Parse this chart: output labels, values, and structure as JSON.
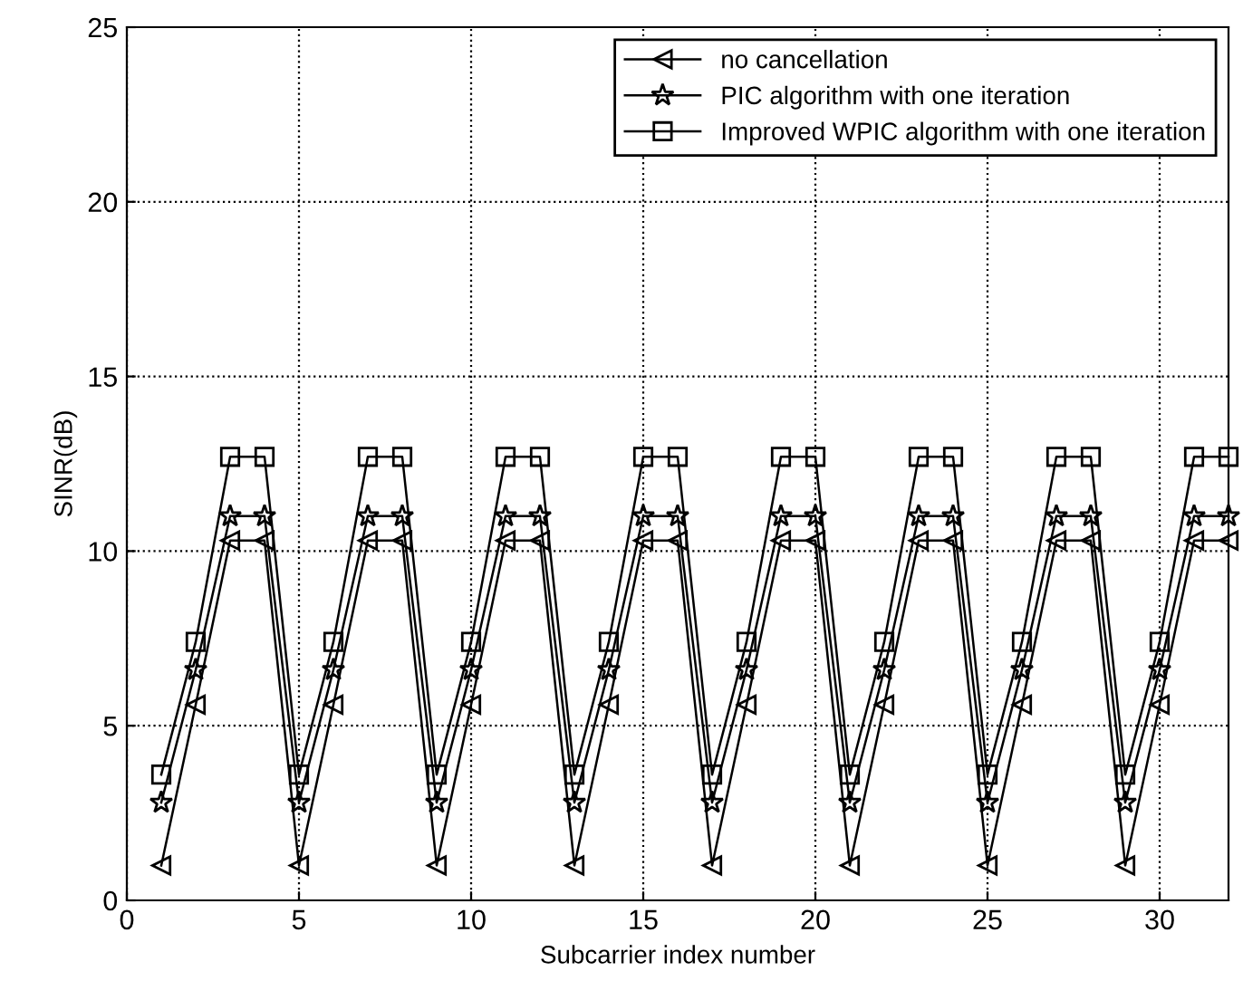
{
  "chart_data": {
    "type": "line",
    "xlabel": "Subcarrier index number",
    "ylabel": "SINR(dB)",
    "x": [
      1,
      2,
      3,
      4,
      5,
      6,
      7,
      8,
      9,
      10,
      11,
      12,
      13,
      14,
      15,
      16,
      17,
      18,
      19,
      20,
      21,
      22,
      23,
      24,
      25,
      26,
      27,
      28,
      29,
      30,
      31,
      32
    ],
    "series": [
      {
        "name": "no cancellation",
        "color": "#000000",
        "marker": "triangle",
        "values": [
          1.0,
          5.6,
          10.3,
          10.3,
          1.0,
          5.6,
          10.3,
          10.3,
          1.0,
          5.6,
          10.3,
          10.3,
          1.0,
          5.6,
          10.3,
          10.3,
          1.0,
          5.6,
          10.3,
          10.3,
          1.0,
          5.6,
          10.3,
          10.3,
          1.0,
          5.6,
          10.3,
          10.3,
          1.0,
          5.6,
          10.3,
          10.3
        ]
      },
      {
        "name": "PIC algorithm with one iteration",
        "color": "#000000",
        "marker": "star",
        "values": [
          2.8,
          6.6,
          11.0,
          11.0,
          2.8,
          6.6,
          11.0,
          11.0,
          2.8,
          6.6,
          11.0,
          11.0,
          2.8,
          6.6,
          11.0,
          11.0,
          2.8,
          6.6,
          11.0,
          11.0,
          2.8,
          6.6,
          11.0,
          11.0,
          2.8,
          6.6,
          11.0,
          11.0,
          2.8,
          6.6,
          11.0,
          11.0
        ]
      },
      {
        "name": "Improved WPIC algorithm with one iteration",
        "color": "#000000",
        "marker": "square",
        "values": [
          3.6,
          7.4,
          12.7,
          12.7,
          3.6,
          7.4,
          12.7,
          12.7,
          3.6,
          7.4,
          12.7,
          12.7,
          3.6,
          7.4,
          12.7,
          12.7,
          3.6,
          7.4,
          12.7,
          12.7,
          3.6,
          7.4,
          12.7,
          12.7,
          3.6,
          7.4,
          12.7,
          12.7,
          3.6,
          7.4,
          12.7,
          12.7
        ]
      }
    ],
    "xlim": [
      0,
      32
    ],
    "xticks": [
      0,
      5,
      10,
      15,
      20,
      25,
      30
    ],
    "ylim": [
      0,
      25
    ],
    "yticks": [
      0,
      5,
      10,
      15,
      20,
      25
    ],
    "grid": true,
    "legend": "top right",
    "line_style": "solid"
  }
}
